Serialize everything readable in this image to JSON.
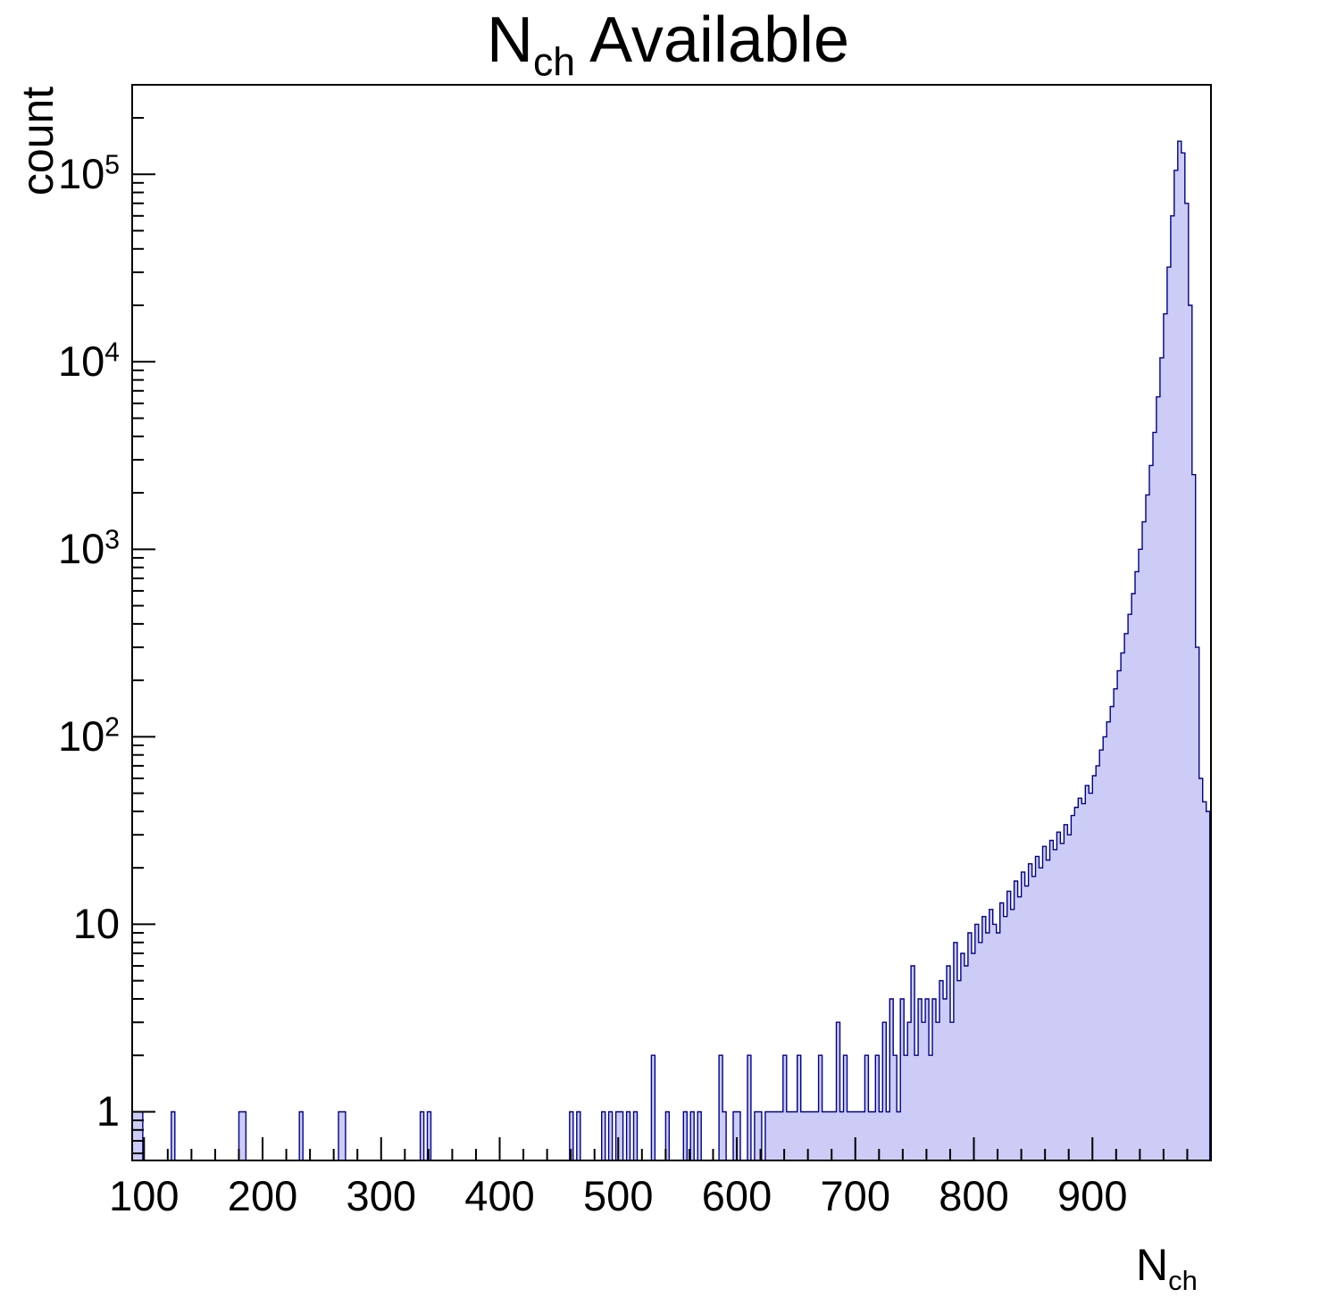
{
  "title": {
    "main": "N",
    "sub": "ch",
    "rest": " Available"
  },
  "axes": {
    "y_label": "count",
    "x_label_main": "N",
    "x_label_sub": "ch",
    "x_ticks": [
      {
        "v": 100,
        "t": "100"
      },
      {
        "v": 200,
        "t": "200"
      },
      {
        "v": 300,
        "t": "300"
      },
      {
        "v": 400,
        "t": "400"
      },
      {
        "v": 500,
        "t": "500"
      },
      {
        "v": 600,
        "t": "600"
      },
      {
        "v": 700,
        "t": "700"
      },
      {
        "v": 800,
        "t": "800"
      },
      {
        "v": 900,
        "t": "900"
      }
    ],
    "y_ticks": [
      {
        "v": 1,
        "t": "1"
      },
      {
        "v": 10,
        "t": "10"
      },
      {
        "v": 100,
        "t": "10",
        "e": "2"
      },
      {
        "v": 1000,
        "t": "10",
        "e": "3"
      },
      {
        "v": 10000,
        "t": "10",
        "e": "4"
      },
      {
        "v": 100000,
        "t": "10",
        "e": "5"
      }
    ],
    "x_minor_step": 20
  },
  "colors": {
    "line": "#00008b",
    "fill": "#ccccf6",
    "axis": "#000000",
    "background": "#ffffff"
  },
  "chart_data": {
    "type": "bar",
    "title": "N_ch Available",
    "xlabel": "N_ch",
    "ylabel": "count",
    "y_scale": "log",
    "x_range": [
      90,
      1000
    ],
    "y_range": [
      0.55,
      300000
    ],
    "bin_width": 3,
    "bins": [
      [
        90,
        1
      ],
      [
        93,
        1
      ],
      [
        96,
        1
      ],
      [
        123,
        1
      ],
      [
        180,
        1
      ],
      [
        183,
        1
      ],
      [
        231,
        1
      ],
      [
        264,
        1
      ],
      [
        267,
        1
      ],
      [
        333,
        1
      ],
      [
        339,
        1
      ],
      [
        459,
        1
      ],
      [
        465,
        1
      ],
      [
        486,
        1
      ],
      [
        492,
        1
      ],
      [
        498,
        1
      ],
      [
        501,
        1
      ],
      [
        507,
        1
      ],
      [
        513,
        1
      ],
      [
        528,
        2
      ],
      [
        540,
        1
      ],
      [
        555,
        1
      ],
      [
        561,
        1
      ],
      [
        567,
        1
      ],
      [
        585,
        2
      ],
      [
        588,
        1
      ],
      [
        597,
        1
      ],
      [
        600,
        1
      ],
      [
        609,
        2
      ],
      [
        615,
        1
      ],
      [
        618,
        1
      ],
      [
        624,
        1
      ],
      [
        627,
        1
      ],
      [
        630,
        1
      ],
      [
        633,
        1
      ],
      [
        636,
        1
      ],
      [
        639,
        2
      ],
      [
        642,
        1
      ],
      [
        645,
        1
      ],
      [
        648,
        1
      ],
      [
        651,
        2
      ],
      [
        654,
        1
      ],
      [
        657,
        1
      ],
      [
        660,
        1
      ],
      [
        663,
        1
      ],
      [
        666,
        1
      ],
      [
        669,
        2
      ],
      [
        672,
        1
      ],
      [
        675,
        1
      ],
      [
        678,
        1
      ],
      [
        681,
        1
      ],
      [
        684,
        3
      ],
      [
        687,
        1
      ],
      [
        690,
        2
      ],
      [
        693,
        1
      ],
      [
        696,
        1
      ],
      [
        699,
        1
      ],
      [
        702,
        1
      ],
      [
        705,
        1
      ],
      [
        708,
        2
      ],
      [
        711,
        1
      ],
      [
        714,
        1
      ],
      [
        717,
        2
      ],
      [
        720,
        1
      ],
      [
        723,
        3
      ],
      [
        726,
        1
      ],
      [
        729,
        4
      ],
      [
        732,
        2
      ],
      [
        735,
        1
      ],
      [
        738,
        4
      ],
      [
        741,
        2
      ],
      [
        744,
        3
      ],
      [
        747,
        6
      ],
      [
        750,
        2
      ],
      [
        753,
        4
      ],
      [
        756,
        3
      ],
      [
        759,
        4
      ],
      [
        762,
        2
      ],
      [
        765,
        4
      ],
      [
        768,
        3
      ],
      [
        771,
        5
      ],
      [
        774,
        4
      ],
      [
        777,
        6
      ],
      [
        780,
        3
      ],
      [
        783,
        8
      ],
      [
        786,
        5
      ],
      [
        789,
        7
      ],
      [
        792,
        6
      ],
      [
        795,
        9
      ],
      [
        798,
        7
      ],
      [
        801,
        10
      ],
      [
        804,
        8
      ],
      [
        807,
        11
      ],
      [
        810,
        9
      ],
      [
        813,
        12
      ],
      [
        816,
        10
      ],
      [
        819,
        9
      ],
      [
        822,
        13
      ],
      [
        825,
        11
      ],
      [
        828,
        15
      ],
      [
        831,
        12
      ],
      [
        834,
        17
      ],
      [
        837,
        14
      ],
      [
        840,
        19
      ],
      [
        843,
        16
      ],
      [
        846,
        21
      ],
      [
        849,
        18
      ],
      [
        852,
        23
      ],
      [
        855,
        20
      ],
      [
        858,
        26
      ],
      [
        861,
        22
      ],
      [
        864,
        28
      ],
      [
        867,
        25
      ],
      [
        870,
        31
      ],
      [
        873,
        27
      ],
      [
        876,
        34
      ],
      [
        879,
        30
      ],
      [
        882,
        38
      ],
      [
        885,
        42
      ],
      [
        888,
        47
      ],
      [
        891,
        44
      ],
      [
        894,
        55
      ],
      [
        897,
        50
      ],
      [
        900,
        62
      ],
      [
        903,
        70
      ],
      [
        906,
        85
      ],
      [
        909,
        100
      ],
      [
        912,
        120
      ],
      [
        915,
        145
      ],
      [
        918,
        180
      ],
      [
        921,
        225
      ],
      [
        924,
        280
      ],
      [
        927,
        355
      ],
      [
        930,
        450
      ],
      [
        933,
        580
      ],
      [
        936,
        760
      ],
      [
        939,
        1000
      ],
      [
        942,
        1400
      ],
      [
        945,
        1950
      ],
      [
        948,
        2800
      ],
      [
        951,
        4200
      ],
      [
        954,
        6500
      ],
      [
        957,
        10500
      ],
      [
        960,
        18000
      ],
      [
        963,
        32000
      ],
      [
        966,
        60000
      ],
      [
        969,
        105000
      ],
      [
        972,
        150000
      ],
      [
        975,
        130000
      ],
      [
        978,
        70000
      ],
      [
        981,
        20000
      ],
      [
        984,
        2500
      ],
      [
        987,
        300
      ],
      [
        990,
        60
      ],
      [
        993,
        45
      ],
      [
        996,
        40
      ]
    ]
  }
}
